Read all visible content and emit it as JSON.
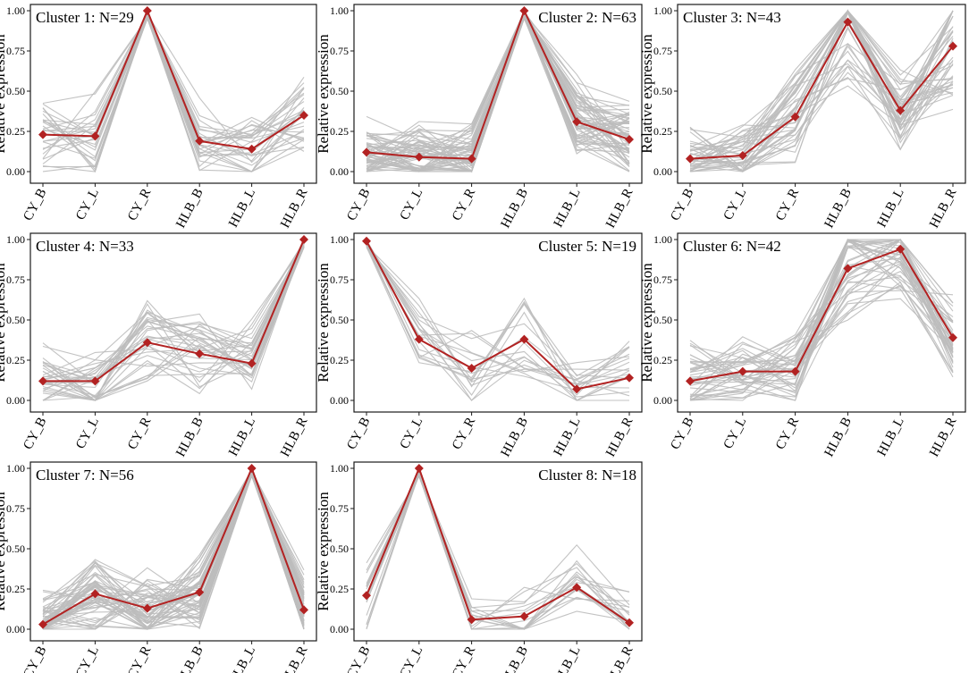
{
  "colors": {
    "background": "#ffffff",
    "gene_line": "#bdbdbd",
    "centroid": "#b22222",
    "frame": "#1a1a1a"
  },
  "ylabel": "Relative expression",
  "categories": [
    "CY_B",
    "CY_L",
    "CY_R",
    "HLB_B",
    "HLB_L",
    "HLB_R"
  ],
  "yticks": [
    "0.00",
    "0.25",
    "0.50",
    "0.75",
    "1.00"
  ],
  "chart_data": [
    {
      "type": "line",
      "title": "Cluster 1: N=29",
      "title_position": "top-left",
      "ylim": [
        0,
        1
      ],
      "centroid": [
        0.23,
        0.22,
        1.0,
        0.19,
        0.14,
        0.35
      ]
    },
    {
      "type": "line",
      "title": "Cluster 2: N=63",
      "title_position": "top-right",
      "ylim": [
        0,
        1
      ],
      "centroid": [
        0.12,
        0.09,
        0.08,
        1.0,
        0.31,
        0.2
      ]
    },
    {
      "type": "line",
      "title": "Cluster 3: N=43",
      "title_position": "top-left",
      "ylim": [
        0,
        1
      ],
      "centroid": [
        0.08,
        0.1,
        0.34,
        0.93,
        0.38,
        0.78
      ]
    },
    {
      "type": "line",
      "title": "Cluster 4: N=33",
      "title_position": "top-left",
      "ylim": [
        0,
        1
      ],
      "centroid": [
        0.12,
        0.12,
        0.36,
        0.29,
        0.23,
        1.0
      ]
    },
    {
      "type": "line",
      "title": "Cluster 5: N=19",
      "title_position": "top-right",
      "ylim": [
        0,
        1
      ],
      "centroid": [
        0.99,
        0.38,
        0.2,
        0.38,
        0.07,
        0.14
      ]
    },
    {
      "type": "line",
      "title": "Cluster 6: N=42",
      "title_position": "top-left",
      "ylim": [
        0,
        1
      ],
      "centroid": [
        0.12,
        0.18,
        0.18,
        0.82,
        0.94,
        0.39
      ]
    },
    {
      "type": "line",
      "title": "Cluster 7: N=56",
      "title_position": "top-left",
      "ylim": [
        0,
        1
      ],
      "centroid": [
        0.03,
        0.22,
        0.13,
        0.23,
        1.0,
        0.12
      ]
    },
    {
      "type": "line",
      "title": "Cluster 8: N=18",
      "title_position": "top-right",
      "ylim": [
        0,
        1
      ],
      "centroid": [
        0.21,
        1.0,
        0.06,
        0.08,
        0.26,
        0.04
      ]
    }
  ]
}
